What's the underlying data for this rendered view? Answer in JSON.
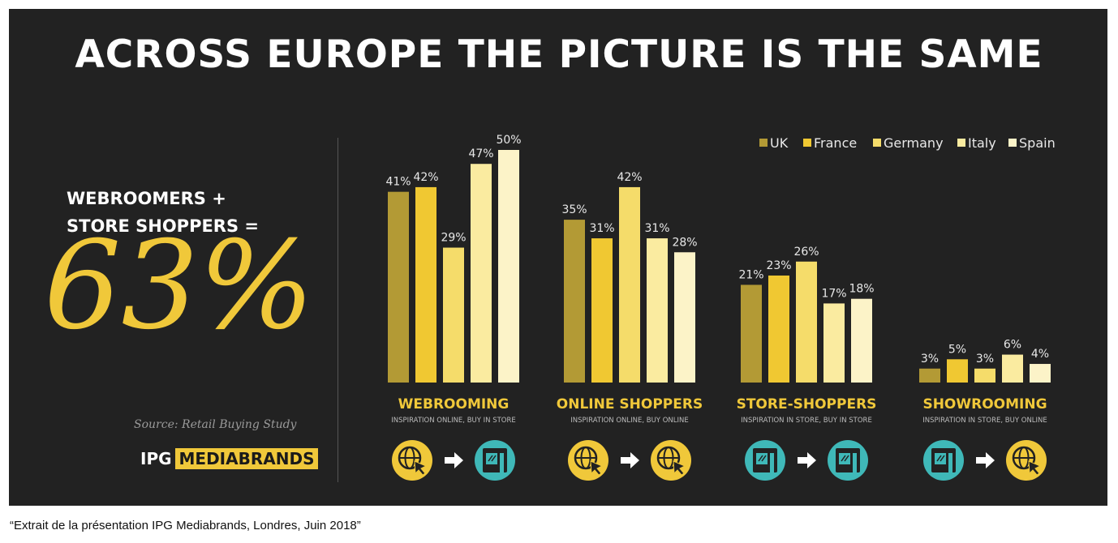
{
  "title": "ACROSS EUROPE THE PICTURE IS THE SAME",
  "subtitle_line1": "WEBROOMERS +",
  "subtitle_line2": "STORE SHOPPERS =",
  "big_percent": "63%",
  "source": "Source: Retail Buying Study",
  "brand": {
    "prefix": "IPG",
    "highlight": "MEDIABRANDS",
    "highlight_color": "#f0c83a"
  },
  "caption": "“Extrait de la présentation IPG Mediabrands, Londres, Juin 2018”",
  "colors": {
    "background": "#222222",
    "accent": "#f0c83a",
    "teal": "#3fb8b8"
  },
  "chart_data": {
    "type": "bar",
    "legend_position": "top-right",
    "grid": false,
    "ylim": [
      0,
      55
    ],
    "series": [
      {
        "name": "UK",
        "color": "#b39a35",
        "values": [
          41,
          35,
          21,
          3
        ]
      },
      {
        "name": "France",
        "color": "#f0c832",
        "values": [
          42,
          31,
          23,
          5
        ]
      },
      {
        "name": "Germany",
        "color": "#f5dc6a",
        "values": [
          29,
          42,
          26,
          3
        ]
      },
      {
        "name": "Italy",
        "color": "#faeba0",
        "values": [
          47,
          31,
          17,
          6
        ]
      },
      {
        "name": "Spain",
        "color": "#fcf3c8",
        "values": [
          50,
          28,
          18,
          4
        ]
      }
    ],
    "groups": [
      {
        "name": "WEBROOMING",
        "desc": "INSPIRATION ONLINE, BUY IN STORE",
        "icons": [
          "globe-cursor-icon",
          "store-icon"
        ]
      },
      {
        "name": "ONLINE SHOPPERS",
        "desc": "INSPIRATION ONLINE, BUY ONLINE",
        "icons": [
          "globe-cursor-icon",
          "globe-cursor-icon"
        ]
      },
      {
        "name": "STORE-SHOPPERS",
        "desc": "INSPIRATION IN STORE, BUY IN STORE",
        "icons": [
          "store-icon",
          "store-icon"
        ]
      },
      {
        "name": "SHOWROOMING",
        "desc": "INSPIRATION IN STORE, BUY ONLINE",
        "icons": [
          "store-icon",
          "globe-cursor-icon"
        ]
      }
    ]
  }
}
